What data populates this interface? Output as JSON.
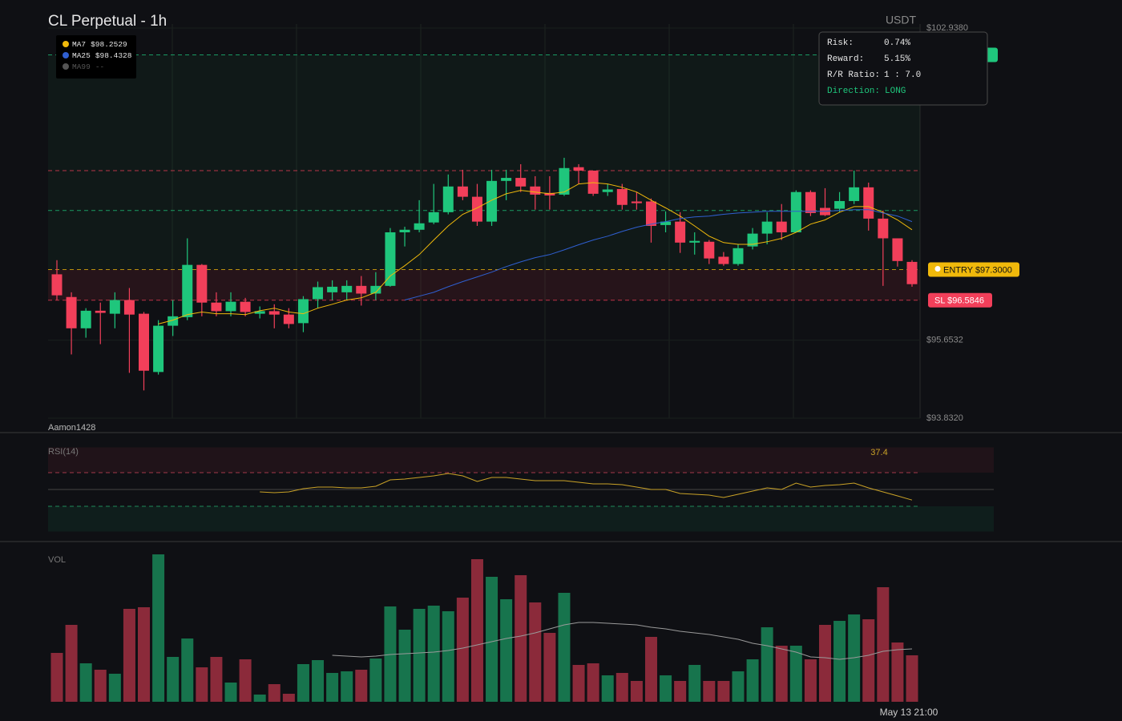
{
  "chart_data": [
    {
      "type": "candlestick",
      "title": "CL Perpetual - 1h",
      "currency": "USDT",
      "watermark": "Aamon1428",
      "time_label": "May 13 21:00",
      "up_color": "#1fc67c",
      "down_color": "#f23f5a",
      "open": [
        97.19,
        96.66,
        95.93,
        96.34,
        96.27,
        96.59,
        96.27,
        94.91,
        95.99,
        96.19,
        97.41,
        96.53,
        96.33,
        96.55,
        96.27,
        96.33,
        96.25,
        96.05,
        96.61,
        96.77,
        96.77,
        96.92,
        96.74,
        96.92,
        98.17,
        98.23,
        98.4,
        98.64,
        99.24,
        99.0,
        98.42,
        99.37,
        99.44,
        99.24,
        99.09,
        99.05,
        99.69,
        99.61,
        99.11,
        99.18,
        98.89,
        98.89,
        98.34,
        98.42,
        97.93,
        97.95,
        97.6,
        97.43,
        97.84,
        98.14,
        98.42,
        98.17,
        99.11,
        98.74,
        98.72,
        98.9,
        99.22,
        98.49,
        98.03,
        97.48
      ],
      "high": [
        97.52,
        96.77,
        96.4,
        96.53,
        96.77,
        96.87,
        96.31,
        96.12,
        96.59,
        98.03,
        97.43,
        96.77,
        96.77,
        96.64,
        96.44,
        96.49,
        96.4,
        96.68,
        97.02,
        97.05,
        97.05,
        97.15,
        97.24,
        98.27,
        98.3,
        98.92,
        99.3,
        99.52,
        99.63,
        99.3,
        99.63,
        99.63,
        99.76,
        99.48,
        99.48,
        99.91,
        99.76,
        99.61,
        99.3,
        99.3,
        99.11,
        98.96,
        98.66,
        98.64,
        98.17,
        97.99,
        97.71,
        97.89,
        98.27,
        98.64,
        98.83,
        99.15,
        99.15,
        99.2,
        99.11,
        99.61,
        99.33,
        98.68,
        98.03,
        97.52
      ],
      "low": [
        96.59,
        95.32,
        95.71,
        95.56,
        95.93,
        94.89,
        94.48,
        94.85,
        95.75,
        96.12,
        96.21,
        96.21,
        96.21,
        96.21,
        96.16,
        95.93,
        95.93,
        95.84,
        96.4,
        96.59,
        96.59,
        96.46,
        96.59,
        96.9,
        97.84,
        98.17,
        98.36,
        98.59,
        98.92,
        98.32,
        98.32,
        98.92,
        99.11,
        98.7,
        98.7,
        99.02,
        99.3,
        99.02,
        99.02,
        98.7,
        98.7,
        97.93,
        98.17,
        97.69,
        97.65,
        97.43,
        97.39,
        97.39,
        97.77,
        97.89,
        97.99,
        98.17,
        98.55,
        98.55,
        98.64,
        98.83,
        98.21,
        96.92,
        97.37,
        96.9
      ],
      "close": [
        96.7,
        95.93,
        96.34,
        96.29,
        96.59,
        96.25,
        94.94,
        95.99,
        96.21,
        97.41,
        96.53,
        96.33,
        96.55,
        96.31,
        96.33,
        96.25,
        96.03,
        96.61,
        96.89,
        96.9,
        96.92,
        96.74,
        96.92,
        98.17,
        98.23,
        98.38,
        98.64,
        99.24,
        99.0,
        98.42,
        99.37,
        99.44,
        99.24,
        99.05,
        99.03,
        99.67,
        99.61,
        99.07,
        99.17,
        98.81,
        98.85,
        98.32,
        98.42,
        97.93,
        97.97,
        97.56,
        97.43,
        97.8,
        98.14,
        98.42,
        98.17,
        99.11,
        98.62,
        98.57,
        98.9,
        99.22,
        98.49,
        98.03,
        97.5,
        96.96
      ],
      "ma_lines": [
        {
          "name": "MA7",
          "legend_value": "$98.2529",
          "color": "#f0b90b",
          "values": [
            null,
            null,
            null,
            null,
            null,
            null,
            null,
            96.03,
            96.12,
            96.25,
            96.31,
            96.27,
            96.27,
            96.25,
            96.34,
            96.4,
            96.31,
            96.27,
            96.4,
            96.49,
            96.59,
            96.64,
            96.77,
            97.15,
            97.39,
            97.65,
            97.99,
            98.32,
            98.59,
            98.74,
            98.92,
            99.07,
            99.15,
            99.11,
            99.07,
            99.11,
            99.3,
            99.33,
            99.3,
            99.22,
            99.11,
            98.92,
            98.74,
            98.55,
            98.32,
            98.08,
            97.93,
            97.89,
            97.89,
            97.95,
            98.03,
            98.17,
            98.36,
            98.46,
            98.64,
            98.77,
            98.77,
            98.64,
            98.46,
            98.23
          ]
        },
        {
          "name": "MA25",
          "legend_value": "$98.4328",
          "color": "#2f5fd0",
          "values": [
            null,
            null,
            null,
            null,
            null,
            null,
            null,
            null,
            null,
            null,
            null,
            null,
            null,
            null,
            null,
            null,
            null,
            null,
            null,
            null,
            null,
            null,
            null,
            null,
            96.59,
            96.68,
            96.77,
            96.9,
            97.02,
            97.13,
            97.24,
            97.37,
            97.48,
            97.58,
            97.65,
            97.76,
            97.88,
            97.99,
            98.08,
            98.19,
            98.29,
            98.36,
            98.42,
            98.49,
            98.53,
            98.55,
            98.59,
            98.62,
            98.64,
            98.66,
            98.66,
            98.66,
            98.66,
            98.66,
            98.68,
            98.7,
            98.7,
            98.62,
            98.55,
            98.42
          ]
        },
        {
          "name": "MA99",
          "legend_value": "--",
          "color": "#555555"
        }
      ],
      "ylim": [
        93.832,
        102.938
      ],
      "yticks": [
        {
          "value": 102.938,
          "label": "$102.9380"
        },
        {
          "value": 95.6532,
          "label": "$95.6532"
        },
        {
          "value": 93.832,
          "label": "$93.8320"
        }
      ],
      "entry": {
        "value": 97.3,
        "label": "ENTRY $97.3000",
        "color": "#f0b90b"
      },
      "stop_loss": {
        "value": 96.5846,
        "label": "SL $96.5846",
        "color": "#f23f5a"
      },
      "take_profit": {
        "value": 102.311,
        "color": "#1fc67c"
      },
      "levels": [
        {
          "value": 99.61,
          "color": "#f23f5a"
        },
        {
          "value": 98.68,
          "color": "#1fc67c"
        }
      ],
      "trade_info": [
        {
          "label": "Risk:",
          "value": "0.74%"
        },
        {
          "label": "Reward:",
          "value": "5.15%"
        },
        {
          "label": "R/R Ratio:",
          "value": "1 : 7.0"
        },
        {
          "label": "Direction:",
          "value": "LONG"
        }
      ]
    },
    {
      "type": "line",
      "title": "RSI(14)",
      "color": "#c9a227",
      "ylim": [
        0,
        100
      ],
      "levels": [
        70,
        50,
        30
      ],
      "values": [
        null,
        null,
        null,
        null,
        null,
        null,
        null,
        null,
        null,
        null,
        null,
        null,
        null,
        null,
        47.1,
        46.2,
        47.1,
        51.0,
        52.9,
        52.9,
        51.9,
        51.9,
        53.8,
        61.4,
        62.4,
        64.3,
        66.2,
        69.0,
        66.2,
        59.5,
        64.3,
        64.3,
        62.4,
        60.5,
        60.5,
        60.5,
        58.6,
        56.7,
        56.7,
        55.7,
        52.9,
        50.0,
        50.0,
        45.2,
        44.3,
        43.3,
        40.5,
        44.3,
        48.1,
        51.9,
        50.0,
        57.6,
        52.9,
        54.8,
        55.7,
        57.6,
        51.9,
        47.1,
        42.4,
        37.4
      ]
    },
    {
      "type": "bar",
      "title": "VOL",
      "ylim": [
        0,
        190
      ],
      "ma_color": "#9a9a9a",
      "values": [
        61,
        96,
        48,
        40,
        35,
        116,
        118,
        184,
        56,
        79,
        43,
        56,
        24,
        53,
        9,
        22,
        10,
        47,
        52,
        36,
        38,
        40,
        54,
        119,
        90,
        116,
        120,
        113,
        130,
        178,
        156,
        128,
        158,
        124,
        86,
        136,
        46,
        48,
        33,
        36,
        26,
        81,
        33,
        26,
        46,
        26,
        26,
        38,
        53,
        93,
        70,
        70,
        53,
        96,
        101,
        109,
        103,
        143,
        74,
        58
      ],
      "ma_values": [
        null,
        null,
        null,
        null,
        null,
        null,
        null,
        null,
        null,
        null,
        null,
        null,
        null,
        null,
        null,
        null,
        null,
        null,
        null,
        58,
        57,
        56,
        57,
        59,
        60,
        61,
        62,
        64,
        67,
        71,
        75,
        79,
        82,
        86,
        91,
        96,
        99,
        99,
        98,
        97,
        96,
        93,
        91,
        88,
        86,
        84,
        81,
        78,
        73,
        70,
        66,
        62,
        56,
        55,
        53,
        55,
        58,
        63,
        65,
        66
      ]
    }
  ]
}
